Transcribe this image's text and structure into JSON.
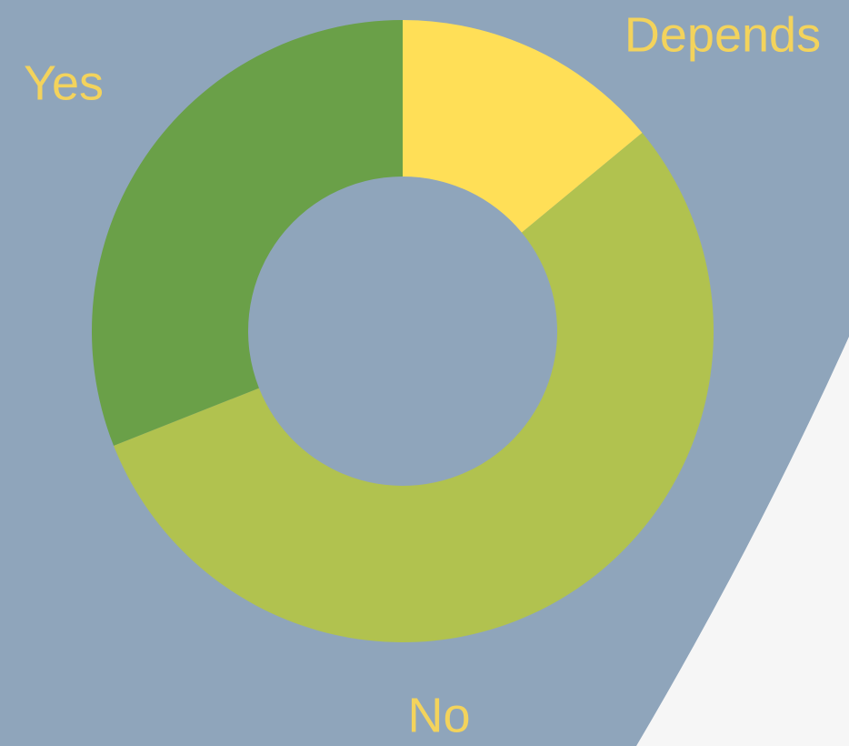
{
  "chart_data": {
    "type": "donut",
    "categories": [
      "Depends",
      "No",
      "Yes"
    ],
    "values": [
      14,
      55,
      31
    ],
    "colors": [
      "#ffdf57",
      "#b1c24f",
      "#6aa048"
    ]
  }
}
